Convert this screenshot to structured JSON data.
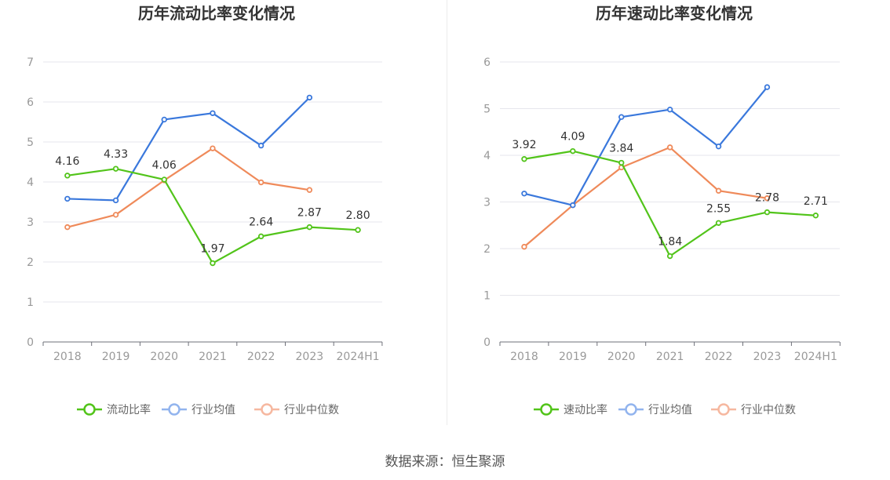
{
  "chart_data": [
    {
      "type": "line",
      "title": "历年流动比率变化情况",
      "categories": [
        "2018",
        "2019",
        "2020",
        "2021",
        "2022",
        "2023",
        "2024H1"
      ],
      "ylim": [
        0,
        7
      ],
      "yticks": [
        "0",
        "1",
        "2",
        "3",
        "4",
        "5",
        "6",
        "7"
      ],
      "grid": true,
      "legend_position": "bottom",
      "series": [
        {
          "name": "流动比率",
          "color": "#52c41a",
          "values": [
            4.16,
            4.33,
            4.06,
            1.97,
            2.64,
            2.87,
            2.8
          ],
          "labels": [
            "4.16",
            "4.33",
            "4.06",
            "1.97",
            "2.64",
            "2.87",
            "2.80"
          ]
        },
        {
          "name": "行业均值",
          "color": "#3a78dc",
          "values": [
            3.58,
            3.54,
            5.56,
            5.72,
            4.91,
            6.11,
            null
          ]
        },
        {
          "name": "行业中位数",
          "color": "#ef8a5a",
          "values": [
            2.87,
            3.18,
            4.04,
            4.84,
            3.99,
            3.8,
            null
          ]
        }
      ]
    },
    {
      "type": "line",
      "title": "历年速动比率变化情况",
      "categories": [
        "2018",
        "2019",
        "2020",
        "2021",
        "2022",
        "2023",
        "2024H1"
      ],
      "ylim": [
        0,
        6
      ],
      "yticks": [
        "0",
        "1",
        "2",
        "3",
        "4",
        "5",
        "6"
      ],
      "grid": true,
      "legend_position": "bottom",
      "series": [
        {
          "name": "速动比率",
          "color": "#52c41a",
          "values": [
            3.92,
            4.09,
            3.84,
            1.84,
            2.55,
            2.78,
            2.71
          ],
          "labels": [
            "3.92",
            "4.09",
            "3.84",
            "1.84",
            "2.55",
            "2.78",
            "2.71"
          ]
        },
        {
          "name": "行业均值",
          "color": "#3a78dc",
          "values": [
            3.18,
            2.93,
            4.82,
            4.98,
            4.19,
            5.46,
            null
          ]
        },
        {
          "name": "行业中位数",
          "color": "#ef8a5a",
          "values": [
            2.04,
            2.93,
            3.74,
            4.17,
            3.24,
            3.08,
            null
          ]
        }
      ]
    }
  ],
  "footer": {
    "source": "数据来源：恒生聚源"
  }
}
